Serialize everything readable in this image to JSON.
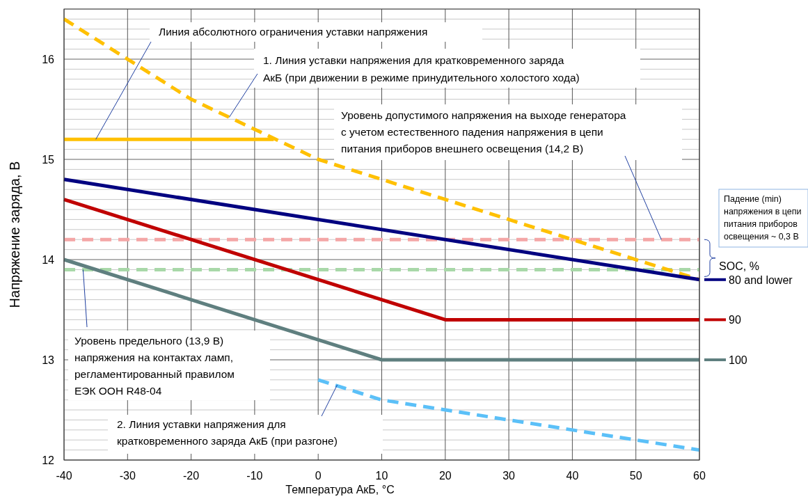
{
  "chart_data": {
    "type": "line",
    "xlabel": "Температура АкБ, °C",
    "ylabel": "Напряжение заряда, В",
    "xlim": [
      -40,
      60
    ],
    "xticks": [
      -40,
      -30,
      -20,
      -10,
      0,
      10,
      20,
      30,
      40,
      50,
      60
    ],
    "ylim": [
      12,
      16.5
    ],
    "yticks": [
      12,
      13,
      14,
      15,
      16
    ],
    "grid": true,
    "legend": "right",
    "legend_title": "SOC, %",
    "marker": "none",
    "series": [
      {
        "color": "#ffc000",
        "line_style": "solid",
        "x": [
          -40,
          -7
        ],
        "values": [
          15.2,
          15.2
        ]
      },
      {
        "color": "#ffc000",
        "line_style": "dashed",
        "x": [
          -40,
          -20,
          0,
          60
        ],
        "values": [
          16.4,
          15.6,
          15.0,
          13.8
        ]
      },
      {
        "name": "80 and lower",
        "color": "#000080",
        "line_style": "solid",
        "x": [
          -40,
          60
        ],
        "values": [
          14.8,
          13.8
        ]
      },
      {
        "name": "90",
        "color": "#c00000",
        "line_style": "solid",
        "x": [
          -40,
          20,
          60
        ],
        "values": [
          14.6,
          13.4,
          13.4
        ]
      },
      {
        "name": "100",
        "color": "#5f7f7f",
        "line_style": "solid",
        "x": [
          -40,
          10,
          60
        ],
        "values": [
          14.0,
          13.0,
          13.0
        ]
      },
      {
        "color": "#5bc0f8",
        "line_style": "dashed",
        "x": [
          0,
          10,
          60
        ],
        "values": [
          12.8,
          12.6,
          12.1
        ]
      }
    ],
    "ref_lines": [
      {
        "axis": "y",
        "value": 14.2,
        "color": "#f4a6a6",
        "line_style": "dashed"
      },
      {
        "axis": "y",
        "value": 13.9,
        "color": "#a8d8a8",
        "line_style": "dashed"
      }
    ],
    "annotations": [
      {
        "text": "Линия абсолютного ограничения уставки напряжения",
        "x": -35,
        "y": 15.2
      },
      {
        "text": "1.   Линия уставки напряжения для кратковременного заряда\nАкБ (при движении в режиме принудительного холостого хода)",
        "x": -14,
        "y": 15.42
      },
      {
        "text": "Уровень допустимого напряжения на выходе генератора\nс учетом естественного падения напряжения в цепи\nпитания приборов внешнего освещения (14,2 В)",
        "x": 54,
        "y": 14.2
      },
      {
        "text": "Уровень предельного (13,9 В)\nнапряжения на контактах ламп,\nрегламентированный правилом\nЕЭК ООН R48-04",
        "x": -37,
        "y": 13.9
      },
      {
        "text": "2. Линия уставки напряжения для\nкратковременного заряда АкБ (при разгоне)",
        "x": 3,
        "y": 12.75
      },
      "Падение (min)\nнапряжения в цепи\nпитания приборов\nосвещения ~ 0,3 В"
    ]
  }
}
